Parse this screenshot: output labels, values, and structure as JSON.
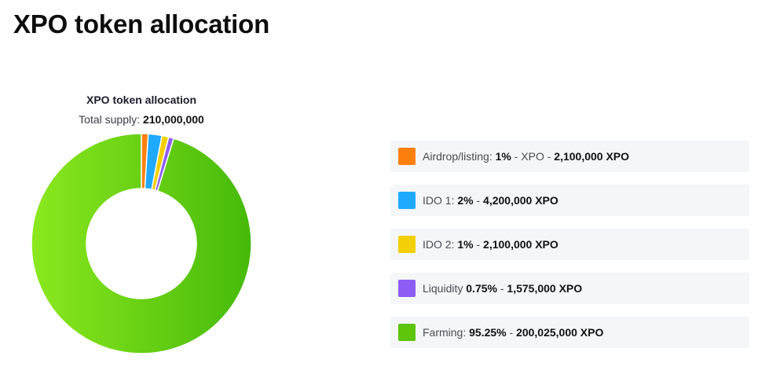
{
  "page": {
    "title": "XPO token allocation"
  },
  "chart_data": {
    "type": "pie",
    "variant": "donut",
    "title": "XPO token allocation",
    "subtitle_label": "Total supply:",
    "subtitle_value": "210,000,000",
    "legend_position": "right",
    "slices": [
      {
        "name": "Airdrop/listing",
        "percent": 1,
        "amount": 2100000,
        "color": "#ff7f0e"
      },
      {
        "name": "IDO 1",
        "percent": 2,
        "amount": 4200000,
        "color": "#1fa9ff"
      },
      {
        "name": "IDO 2",
        "percent": 1,
        "amount": 2100000,
        "color": "#f2cf06"
      },
      {
        "name": "Liquidity",
        "percent": 0.75,
        "amount": 1575000,
        "color": "#8c5cf5"
      },
      {
        "name": "Farming",
        "percent": 95.25,
        "amount": 200025000,
        "color": "#5ec40c",
        "gradient": [
          "#8be81e",
          "#46ba0a"
        ]
      }
    ]
  },
  "legend": {
    "items": [
      {
        "label": "Airdrop/listing:",
        "percent": "1%",
        "sep1": " - ",
        "extra": " XPO - ",
        "amount": "2,100,000 XPO",
        "color": "#ff7f0e"
      },
      {
        "label": "IDO 1:",
        "percent": "2%",
        "sep1": " - ",
        "extra": "",
        "amount": "4,200,000 XPO",
        "color": "#1fa9ff"
      },
      {
        "label": "IDO 2:",
        "percent": "1%",
        "sep1": " - ",
        "extra": "",
        "amount": "2,100,000 XPO",
        "color": "#f2cf06"
      },
      {
        "label": "Liquidity",
        "percent": "0.75%",
        "sep1": " - ",
        "extra": "",
        "amount": "1,575,000 XPO",
        "color": "#8c5cf5"
      },
      {
        "label": "Farming:",
        "percent": "95.25%",
        "sep1": " - ",
        "extra": "",
        "amount": "200,025,000 XPO",
        "color": "#5ec40c"
      }
    ]
  }
}
